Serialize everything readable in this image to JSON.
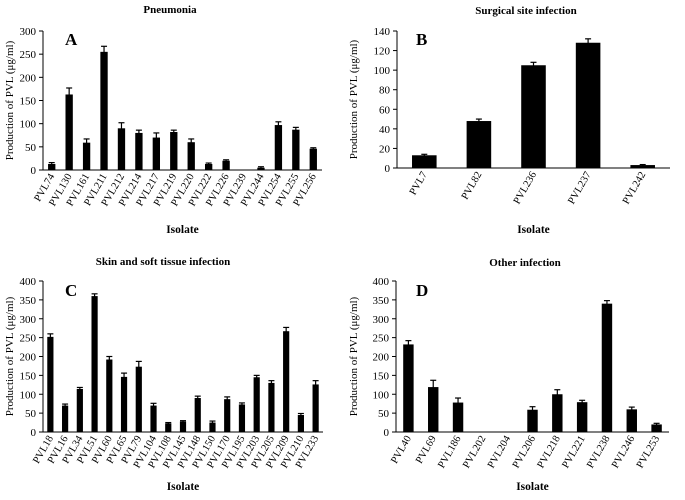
{
  "chart_data": [
    {
      "type": "bar",
      "panel": "A",
      "title": "Pneumonia",
      "xlabel": "Isolate",
      "ylabel": "Production of PVL (μg/ml)",
      "ylim": [
        0,
        300
      ],
      "yticks": [
        0,
        50,
        100,
        150,
        200,
        250,
        300
      ],
      "categories": [
        "PVL74",
        "PVL130",
        "PVL161",
        "PVL211",
        "PVL212",
        "PVL214",
        "PVL217",
        "PVL219",
        "PVL220",
        "PVL222",
        "PVL226",
        "PVL239",
        "PVL244",
        "PVL254",
        "PVL255",
        "PVL256"
      ],
      "values": [
        13,
        163,
        59,
        255,
        90,
        80,
        70,
        82,
        60,
        13,
        20,
        0,
        5,
        97,
        87,
        46
      ],
      "errors": [
        3,
        14,
        8,
        12,
        12,
        6,
        10,
        4,
        7,
        2,
        2,
        0,
        2,
        7,
        5,
        2
      ]
    },
    {
      "type": "bar",
      "panel": "B",
      "title": "Surgical site infection",
      "xlabel": "Isolate",
      "ylabel": "Production of PVL (μg/ml)",
      "ylim": [
        0,
        140
      ],
      "yticks": [
        0,
        20,
        40,
        60,
        80,
        100,
        120,
        140
      ],
      "categories": [
        "PVL7",
        "PVL82",
        "PVL236",
        "PVL237",
        "PVL242"
      ],
      "values": [
        13,
        48,
        105,
        128,
        3
      ],
      "errors": [
        1,
        2,
        3,
        4,
        0.5
      ]
    },
    {
      "type": "bar",
      "panel": "C",
      "title": "Skin and soft tissue infection",
      "xlabel": "Isolate",
      "ylabel": "Production of PVL (μg/ml)",
      "ylim": [
        0,
        400
      ],
      "yticks": [
        0,
        50,
        100,
        150,
        200,
        250,
        300,
        350,
        400
      ],
      "categories": [
        "PVL18",
        "PVL16",
        "PVL34",
        "PVL51",
        "PVL60",
        "PVL65",
        "PVL79",
        "PVL104",
        "PVL108",
        "PVL145",
        "PVL148",
        "PVL150",
        "PVL170",
        "PVL195",
        "PVL203",
        "PVL205",
        "PVL209",
        "PVL210",
        "PVL233"
      ],
      "values": [
        252,
        70,
        114,
        360,
        192,
        146,
        173,
        70,
        23,
        28,
        90,
        25,
        87,
        73,
        145,
        130,
        267,
        45,
        126
      ],
      "errors": [
        8,
        4,
        4,
        6,
        8,
        10,
        14,
        6,
        2,
        2,
        5,
        4,
        6,
        4,
        5,
        6,
        10,
        4,
        10
      ]
    },
    {
      "type": "bar",
      "panel": "D",
      "title": "Other infection",
      "xlabel": "Isolate",
      "ylabel": "Production of PVL (μg/ml)",
      "ylim": [
        0,
        400
      ],
      "yticks": [
        0,
        50,
        100,
        150,
        200,
        250,
        300,
        350,
        400
      ],
      "categories": [
        "PVL40",
        "PVL69",
        "PVL186",
        "PVL202",
        "PVL204",
        "PVL206",
        "PVL218",
        "PVL221",
        "PVL238",
        "PVL246",
        "PVL253"
      ],
      "values": [
        232,
        119,
        78,
        0,
        0,
        59,
        100,
        79,
        340,
        60,
        20
      ],
      "errors": [
        10,
        18,
        12,
        0,
        0,
        8,
        12,
        5,
        8,
        6,
        3
      ]
    }
  ]
}
